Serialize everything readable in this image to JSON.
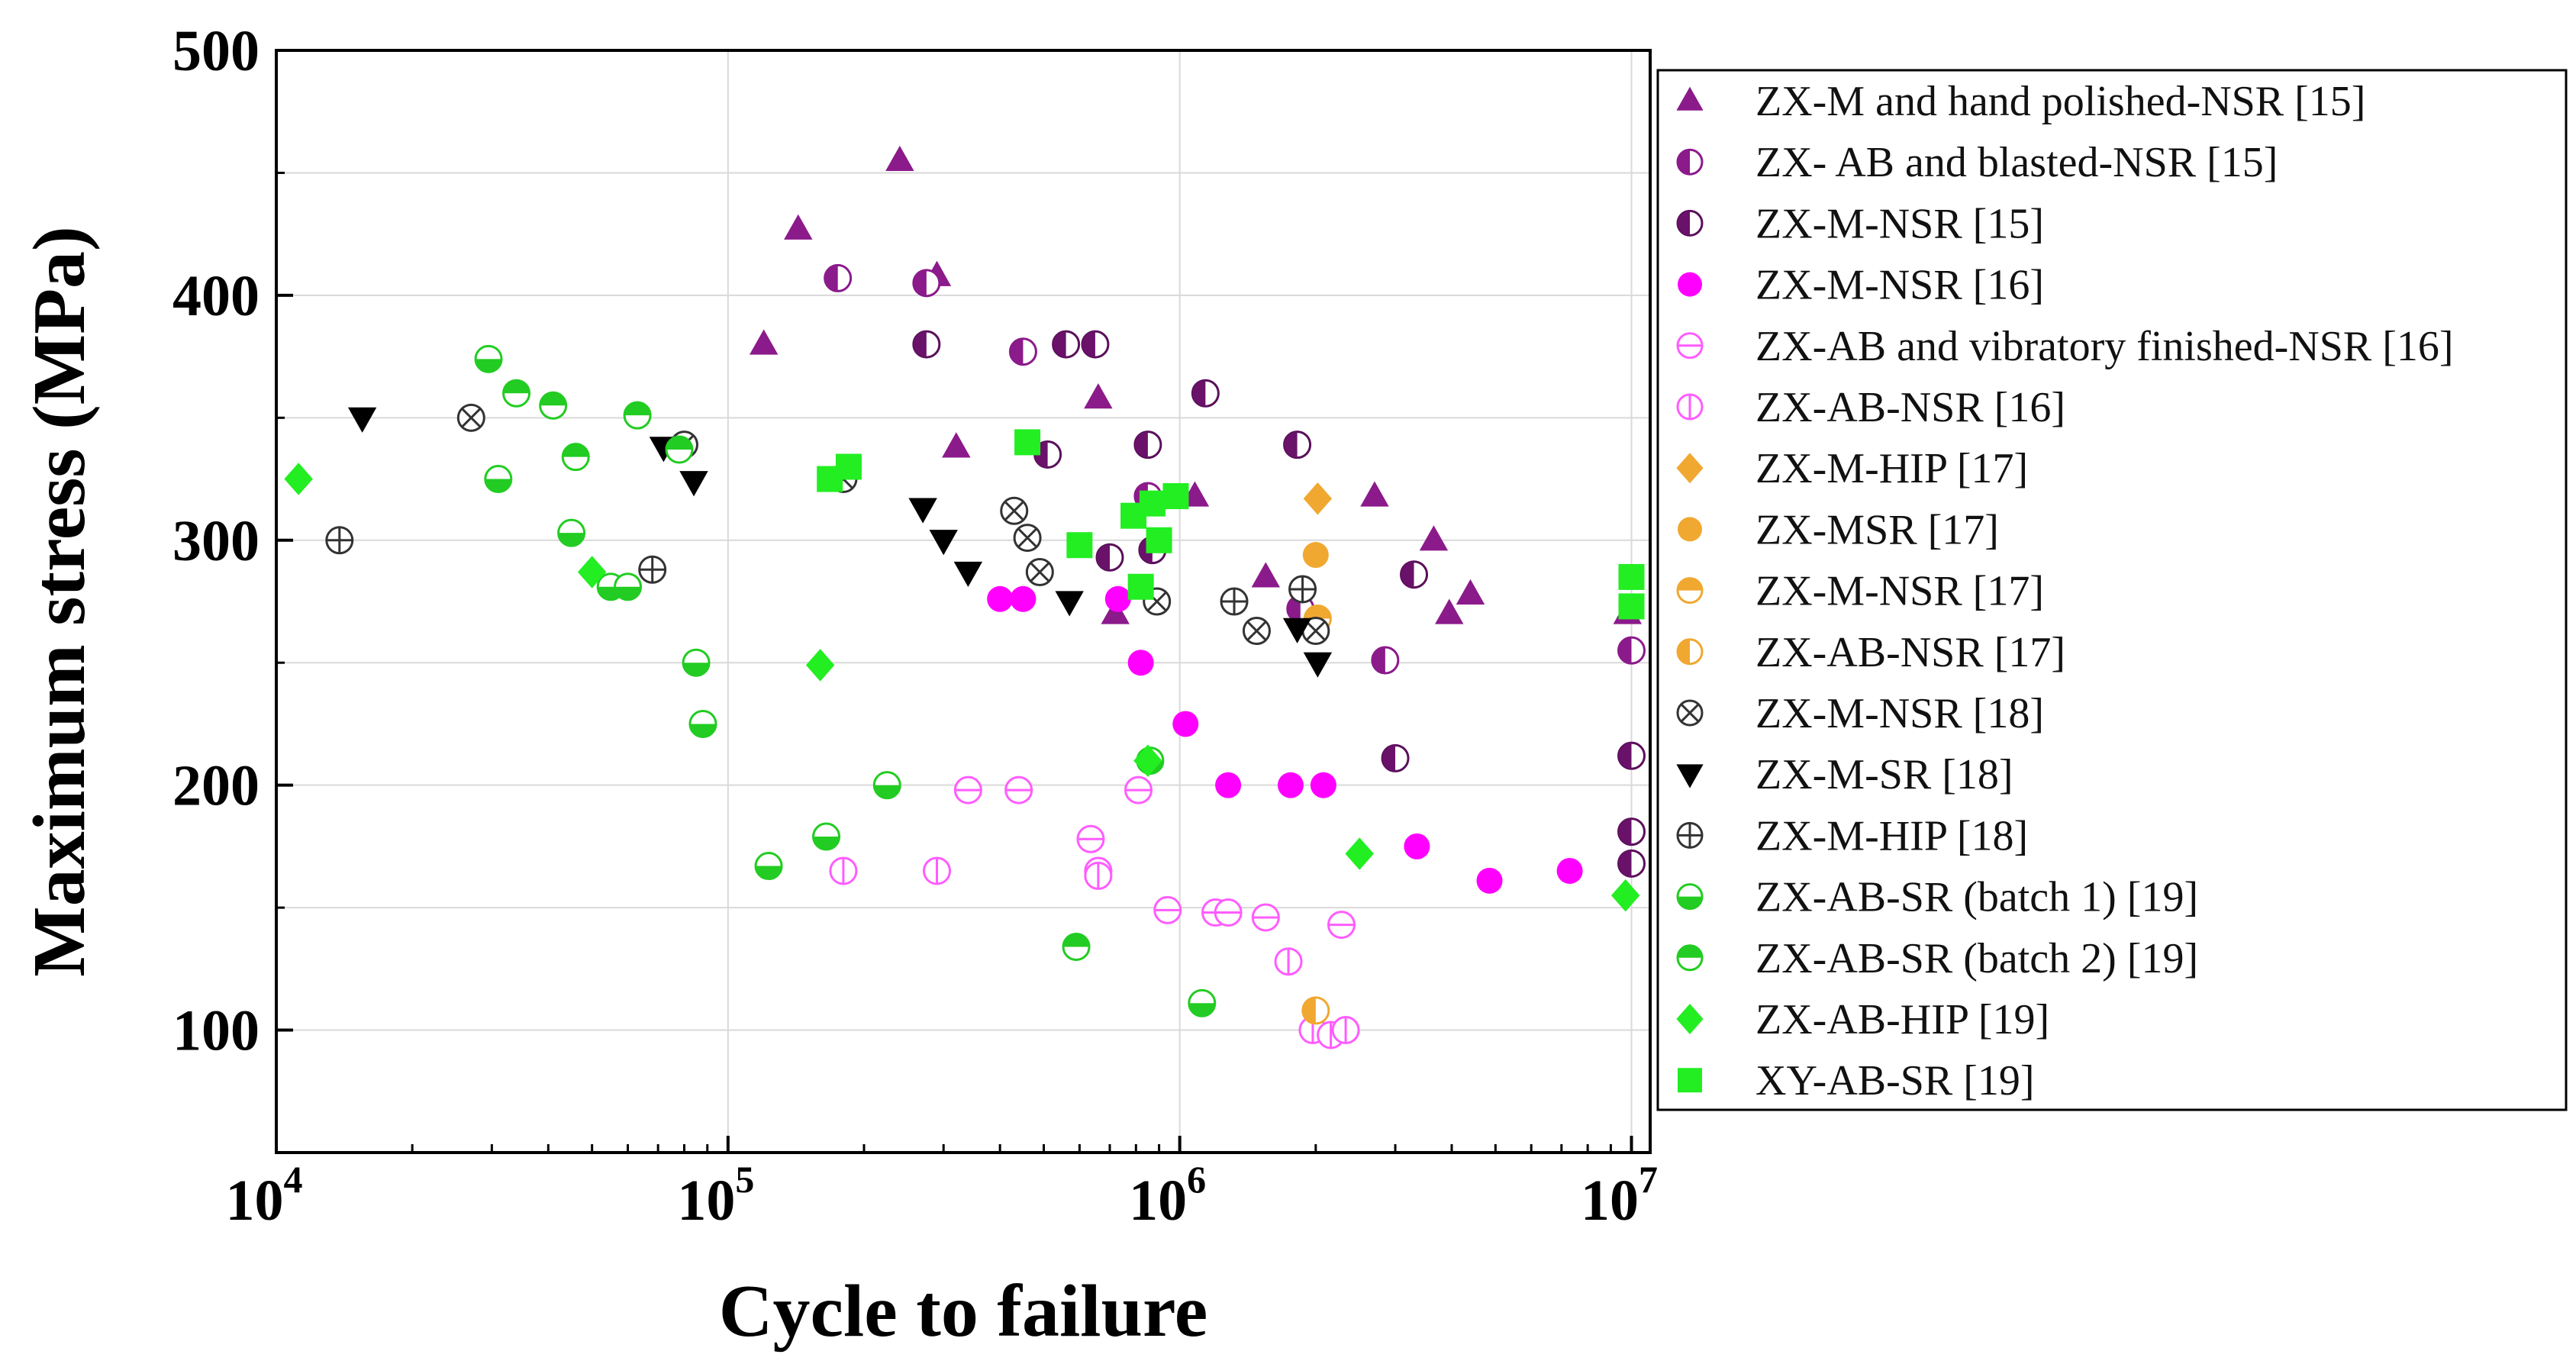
{
  "chart_data": {
    "type": "scatter",
    "title": "",
    "xlabel": "Cycle to failure",
    "ylabel": "Maximum stress (MPa)",
    "xscale": "log",
    "xlim": [
      10000,
      11000000
    ],
    "ylim": [
      50,
      500
    ],
    "x_ticks": [
      {
        "base": "10",
        "exp": "4"
      },
      {
        "base": "10",
        "exp": "5"
      },
      {
        "base": "10",
        "exp": "6"
      },
      {
        "base": "10",
        "exp": "7"
      }
    ],
    "y_ticks": [
      "100",
      "200",
      "300",
      "400",
      "500"
    ],
    "grid": true,
    "legend_position": "right",
    "series": [
      {
        "name": "ZX-M and hand polished-NSR [15]",
        "marker": "triangle-up",
        "color": "#8b1a8b",
        "points": [
          [
            120000,
            380
          ],
          [
            143000,
            427
          ],
          [
            240000,
            455
          ],
          [
            290000,
            408
          ],
          [
            320000,
            338
          ],
          [
            660000,
            358
          ],
          [
            720000,
            270
          ],
          [
            1080000,
            318
          ],
          [
            1550000,
            285
          ],
          [
            2700000,
            318
          ],
          [
            3650000,
            300
          ],
          [
            3950000,
            270
          ],
          [
            4400000,
            278
          ],
          [
            9800000,
            270
          ]
        ]
      },
      {
        "name": "ZX- AB and blasted-NSR [15]",
        "marker": "half-circle-left",
        "color": "#8b1a8b",
        "points": [
          [
            175000,
            407
          ],
          [
            275000,
            405
          ],
          [
            450000,
            377
          ],
          [
            850000,
            318
          ],
          [
            1850000,
            272
          ],
          [
            2850000,
            251
          ],
          [
            10000000,
            255
          ]
        ]
      },
      {
        "name": "ZX-M-NSR [15]",
        "marker": "half-circle-left-dark",
        "color": "#8b1a8b",
        "points": [
          [
            275000,
            380
          ],
          [
            510000,
            335
          ],
          [
            560000,
            380
          ],
          [
            650000,
            380
          ],
          [
            700000,
            293
          ],
          [
            850000,
            339
          ],
          [
            870000,
            296
          ],
          [
            1140000,
            360
          ],
          [
            1820000,
            339
          ],
          [
            3300000,
            286
          ],
          [
            3000000,
            211
          ],
          [
            10000000,
            212
          ],
          [
            10000000,
            181
          ],
          [
            10000000,
            168
          ]
        ]
      },
      {
        "name": "ZX-M-NSR [16]",
        "marker": "circle",
        "color": "#ff00ff",
        "points": [
          [
            400000,
            276
          ],
          [
            450000,
            276
          ],
          [
            730000,
            276
          ],
          [
            820000,
            250
          ],
          [
            1030000,
            225
          ],
          [
            1280000,
            200
          ],
          [
            1760000,
            200
          ],
          [
            2080000,
            200
          ],
          [
            3350000,
            175
          ],
          [
            4850000,
            161
          ],
          [
            7300000,
            165
          ]
        ]
      },
      {
        "name": "ZX-AB and vibratory finished-NSR [16]",
        "marker": "circle-hline",
        "color": "#ff5cff",
        "points": [
          [
            340000,
            198
          ],
          [
            440000,
            198
          ],
          [
            635000,
            178
          ],
          [
            660000,
            165
          ],
          [
            810000,
            198
          ],
          [
            940000,
            149
          ],
          [
            1200000,
            148
          ],
          [
            1280000,
            148
          ],
          [
            1550000,
            146
          ],
          [
            2280000,
            143
          ]
        ]
      },
      {
        "name": "ZX-AB-NSR [16]",
        "marker": "circle-vline",
        "color": "#ff5cff",
        "points": [
          [
            180000,
            165
          ],
          [
            290000,
            165
          ],
          [
            660000,
            163
          ],
          [
            1740000,
            128
          ],
          [
            1970000,
            100
          ],
          [
            2160000,
            98
          ],
          [
            2330000,
            100
          ]
        ]
      },
      {
        "name": "ZX-M-HIP [17]",
        "marker": "diamond",
        "color": "#f0a830",
        "points": [
          [
            2020000,
            317
          ]
        ]
      },
      {
        "name": "ZX-MSR [17]",
        "marker": "circle",
        "color": "#f0a830",
        "points": [
          [
            2000000,
            294
          ]
        ]
      },
      {
        "name": "ZX-M-NSR [17]",
        "marker": "half-circle-top",
        "color": "#f0a830",
        "points": [
          [
            2020000,
            268
          ]
        ]
      },
      {
        "name": "ZX-AB-NSR [17]",
        "marker": "half-circle-left",
        "color": "#f0a830",
        "points": [
          [
            2000000,
            108
          ]
        ]
      },
      {
        "name": "ZX-M-NSR [18]",
        "marker": "circle-x",
        "color": "#333333",
        "points": [
          [
            27000,
            350
          ],
          [
            80000,
            339
          ],
          [
            180000,
            325
          ],
          [
            430000,
            312
          ],
          [
            460000,
            301
          ],
          [
            490000,
            287
          ],
          [
            890000,
            275
          ],
          [
            1480000,
            263
          ],
          [
            2000000,
            263
          ]
        ]
      },
      {
        "name": "ZX-M-SR [18]",
        "marker": "triangle-down",
        "color": "#000000",
        "points": [
          [
            15500,
            350
          ],
          [
            72000,
            338
          ],
          [
            84000,
            324
          ],
          [
            270000,
            313
          ],
          [
            300000,
            300
          ],
          [
            340000,
            287
          ],
          [
            570000,
            275
          ],
          [
            1820000,
            264
          ],
          [
            2020000,
            250
          ]
        ]
      },
      {
        "name": "ZX-M-HIP [18]",
        "marker": "circle-plus",
        "color": "#333333",
        "points": [
          [
            13800,
            300
          ],
          [
            68000,
            288
          ],
          [
            1320000,
            275
          ],
          [
            1870000,
            280
          ]
        ]
      },
      {
        "name": "ZX-AB-SR (batch 1) [19]",
        "marker": "half-circle-bottom",
        "color": "#22cc22",
        "points": [
          [
            29500,
            374
          ],
          [
            31000,
            325
          ],
          [
            45000,
            303
          ],
          [
            55000,
            281
          ],
          [
            60000,
            281
          ],
          [
            85000,
            250
          ],
          [
            88000,
            225
          ],
          [
            123000,
            167
          ],
          [
            165000,
            179
          ],
          [
            225000,
            200
          ],
          [
            860000,
            210
          ],
          [
            1120000,
            111
          ]
        ]
      },
      {
        "name": "ZX-AB-SR (batch 2) [19]",
        "marker": "half-circle-top-green",
        "color": "#22cc22",
        "points": [
          [
            34000,
            360
          ],
          [
            41000,
            355
          ],
          [
            46000,
            334
          ],
          [
            63000,
            351
          ],
          [
            78000,
            337
          ],
          [
            590000,
            134
          ]
        ]
      },
      {
        "name": "ZX-AB-HIP [19]",
        "marker": "diamond",
        "color": "#22ee22",
        "points": [
          [
            11200,
            325
          ],
          [
            50000,
            287
          ],
          [
            160000,
            249
          ],
          [
            850000,
            210
          ],
          [
            2500000,
            172
          ],
          [
            9700000,
            155
          ]
        ]
      },
      {
        "name": "XY-AB-SR [19]",
        "marker": "square",
        "color": "#22ee22",
        "points": [
          [
            168000,
            325
          ],
          [
            185000,
            330
          ],
          [
            460000,
            340
          ],
          [
            600000,
            298
          ],
          [
            790000,
            310
          ],
          [
            820000,
            281
          ],
          [
            870000,
            315
          ],
          [
            900000,
            300
          ],
          [
            980000,
            318
          ],
          [
            10000000,
            285
          ],
          [
            10000000,
            273
          ]
        ]
      }
    ]
  }
}
